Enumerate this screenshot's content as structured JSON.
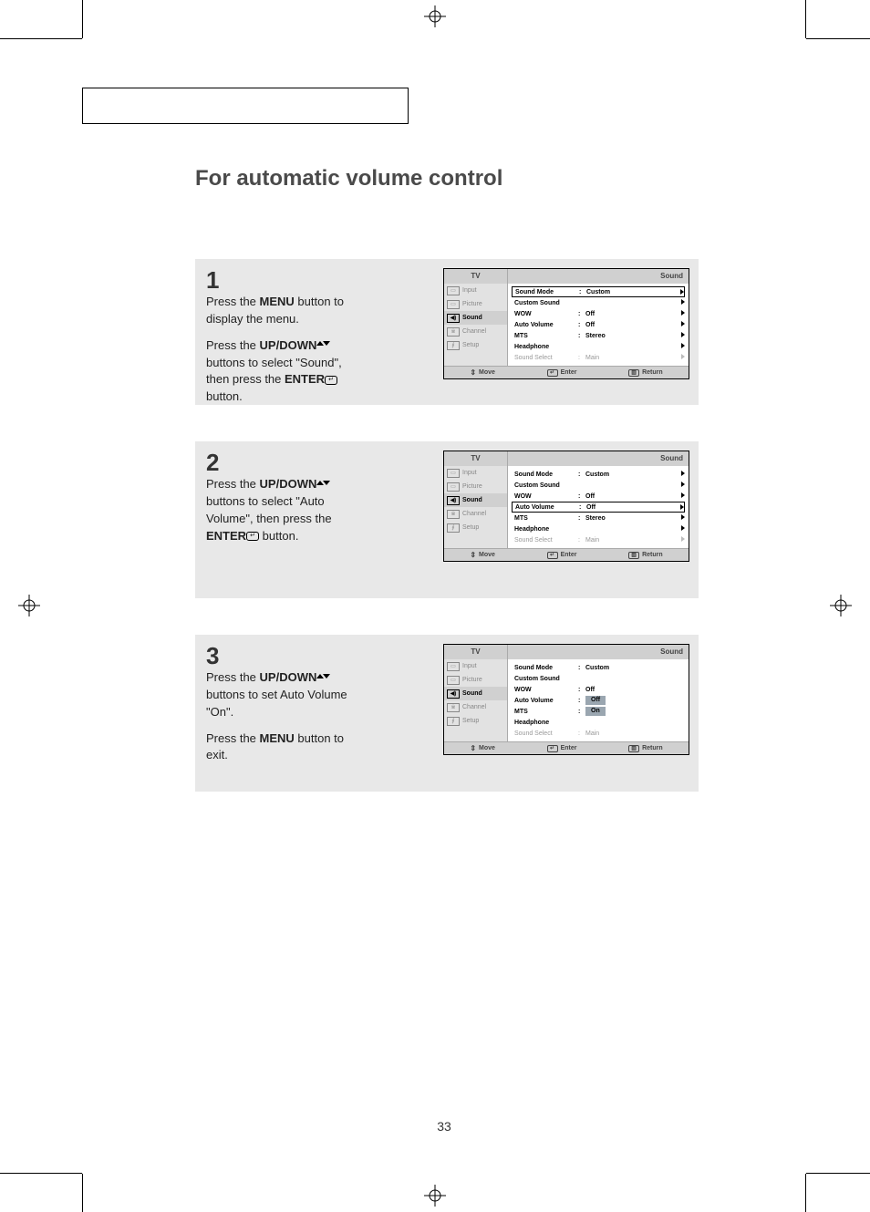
{
  "page_number": "33",
  "title": "For automatic volume control",
  "steps": [
    {
      "num": "1",
      "paragraphs": [
        [
          {
            "t": "Press the "
          },
          {
            "t": "MENU",
            "bold": true
          },
          {
            "t": " button to display the menu."
          }
        ],
        [
          {
            "t": "Press the "
          },
          {
            "t": "UP/DOWN",
            "bold": true
          },
          {
            "icon": "updown"
          },
          {
            "t": "  buttons to select \"Sound\", then press the "
          },
          {
            "t": "ENTER",
            "bold": true
          },
          {
            "icon": "enter"
          },
          {
            "t": " button."
          }
        ]
      ]
    },
    {
      "num": "2",
      "paragraphs": [
        [
          {
            "t": "Press the "
          },
          {
            "t": "UP/DOWN",
            "bold": true
          },
          {
            "icon": "updown"
          },
          {
            "t": "  buttons to select \"Auto Volume\", then press the "
          },
          {
            "t": "ENTER",
            "bold": true
          },
          {
            "icon": "enter"
          },
          {
            "t": "  button."
          }
        ]
      ]
    },
    {
      "num": "3",
      "paragraphs": [
        [
          {
            "t": "Press the "
          },
          {
            "t": "UP/DOWN",
            "bold": true
          },
          {
            "icon": "updown"
          },
          {
            "t": "  buttons to set Auto Volume \"On\"."
          }
        ],
        [
          {
            "t": "Press the "
          },
          {
            "t": "MENU",
            "bold": true
          },
          {
            "t": " button to exit."
          }
        ]
      ]
    }
  ],
  "osd_common": {
    "tv_label": "TV",
    "menu_title": "Sound",
    "sidebar": [
      {
        "icon": "▭",
        "label": "Input"
      },
      {
        "icon": "▭",
        "label": "Picture"
      },
      {
        "icon": "◀)",
        "label": "Sound",
        "active": true
      },
      {
        "icon": "※",
        "label": "Channel"
      },
      {
        "icon": "∮",
        "label": "Setup"
      }
    ],
    "footer": {
      "move": "Move",
      "enter": "Enter",
      "return": "Return"
    }
  },
  "osd_screens": [
    {
      "rows": [
        {
          "label": "Sound Mode",
          "val": "Custom",
          "sel": true,
          "caret": true
        },
        {
          "label": "Custom Sound",
          "val": "",
          "caret": true
        },
        {
          "label": "WOW",
          "val": "Off",
          "caret": true
        },
        {
          "label": "Auto Volume",
          "val": "Off",
          "caret": true
        },
        {
          "label": "MTS",
          "val": "Stereo",
          "caret": true
        },
        {
          "label": "Headphone",
          "val": "",
          "caret": true
        },
        {
          "label": "Sound Select",
          "val": "Main",
          "dim": true,
          "caret": true
        }
      ]
    },
    {
      "rows": [
        {
          "label": "Sound Mode",
          "val": "Custom",
          "caret": true
        },
        {
          "label": "Custom Sound",
          "val": "",
          "caret": true
        },
        {
          "label": "WOW",
          "val": "Off",
          "caret": true
        },
        {
          "label": "Auto Volume",
          "val": "Off",
          "sel": true,
          "caret": true
        },
        {
          "label": "MTS",
          "val": "Stereo",
          "caret": true
        },
        {
          "label": "Headphone",
          "val": "",
          "caret": true
        },
        {
          "label": "Sound Select",
          "val": "Main",
          "dim": true,
          "caret": true
        }
      ]
    },
    {
      "rows": [
        {
          "label": "Sound Mode",
          "val": "Custom"
        },
        {
          "label": "Custom Sound",
          "val": ""
        },
        {
          "label": "WOW",
          "val": "Off"
        },
        {
          "label": "Auto Volume",
          "val": "Off",
          "valbox": true
        },
        {
          "label": "MTS",
          "val": "On",
          "valbox": true
        },
        {
          "label": "Headphone",
          "val": ""
        },
        {
          "label": "Sound Select",
          "val": "Main",
          "dim": true
        }
      ]
    }
  ],
  "colors": {
    "step_bg": "#e8e8e8",
    "title_color": "#4a4a4a",
    "osd_header_bg": "#d0d0d0",
    "osd_side_bg": "#e2e2e2",
    "valbox_bg": "#9aa6b0"
  }
}
